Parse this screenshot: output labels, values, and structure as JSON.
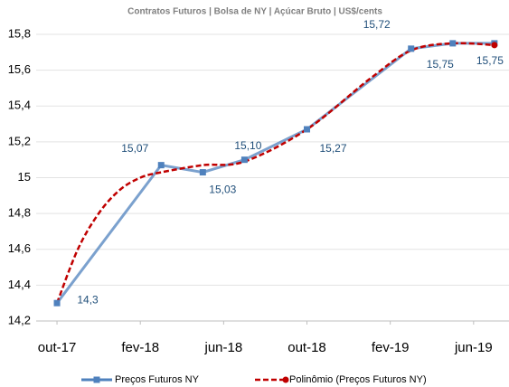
{
  "chart_data": {
    "type": "line",
    "subtitle": "Contratos Futuros | Bolsa de NY | Açúcar Bruto | US$/cents",
    "xlim": [
      -1,
      21.7
    ],
    "xticks": [
      {
        "value": 0,
        "label": "out-17"
      },
      {
        "value": 4,
        "label": "fev-18"
      },
      {
        "value": 8,
        "label": "jun-18"
      },
      {
        "value": 12,
        "label": "out-18"
      },
      {
        "value": 16,
        "label": "fev-19"
      },
      {
        "value": 20,
        "label": "jun-19"
      }
    ],
    "ylim": [
      14.2,
      15.8
    ],
    "yticks": [
      {
        "value": 14.2,
        "label": "14,2"
      },
      {
        "value": 14.4,
        "label": "14,4"
      },
      {
        "value": 14.6,
        "label": "14,6"
      },
      {
        "value": 14.8,
        "label": "14,8"
      },
      15,
      {
        "value": 15.2,
        "label": "15,2"
      },
      {
        "value": 15.4,
        "label": "15,4"
      },
      {
        "value": 15.6,
        "label": "15,6"
      },
      {
        "value": 15.8,
        "label": "15,8"
      }
    ],
    "grid": true,
    "series": [
      {
        "name": "Preços Futuros NY",
        "color": "#4f81bd",
        "x": [
          0,
          5,
          7,
          9,
          12,
          17,
          19,
          21
        ],
        "values": [
          14.3,
          15.07,
          15.03,
          15.1,
          15.27,
          15.72,
          15.75,
          15.75
        ],
        "value_labels": [
          "14,3",
          "15,07",
          "15,03",
          "15,10",
          "15,27",
          "15,72",
          "15,75",
          "15,75"
        ]
      },
      {
        "name": "Polinômio (Preços Futuros NY)",
        "color": "#c00000",
        "x": [
          0,
          1,
          2,
          3,
          4,
          5,
          7,
          9,
          12,
          15,
          17,
          19,
          21
        ],
        "values": [
          14.3,
          14.6,
          14.8,
          14.93,
          15.0,
          15.03,
          15.07,
          15.09,
          15.27,
          15.55,
          15.71,
          15.75,
          15.74
        ]
      }
    ]
  }
}
